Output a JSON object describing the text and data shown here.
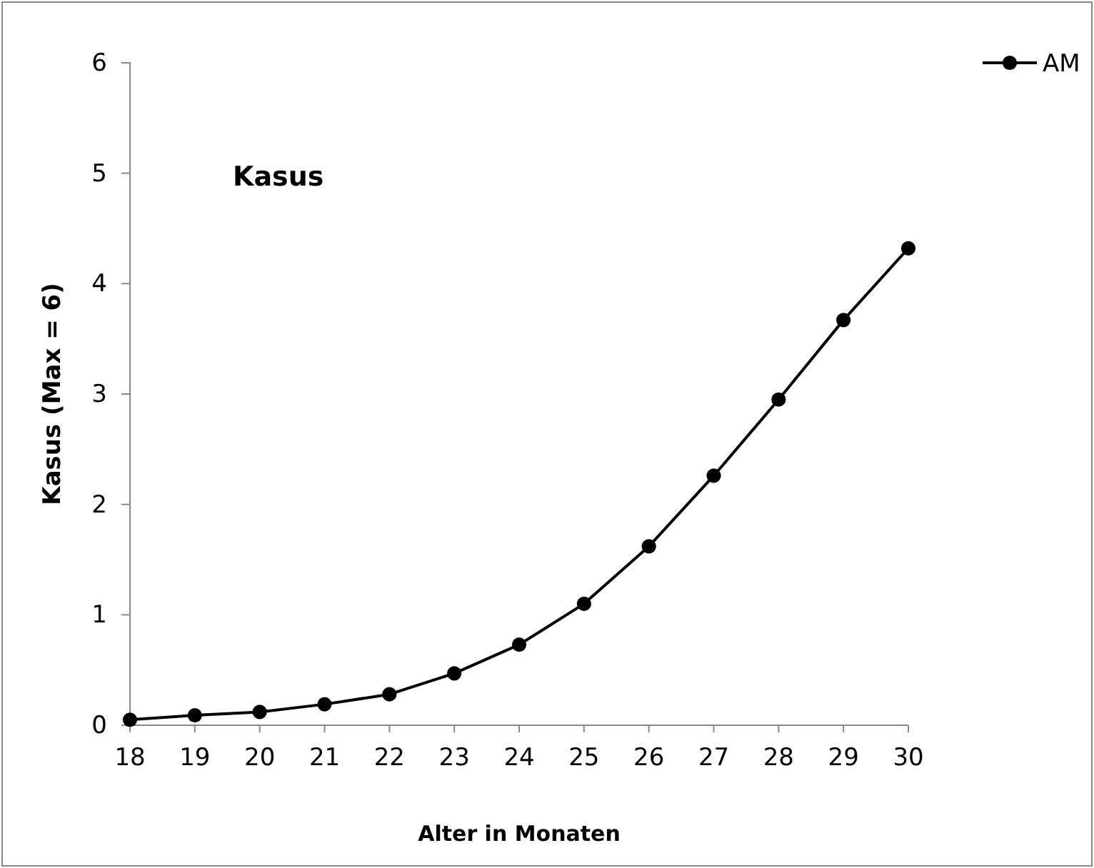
{
  "chart_data": {
    "type": "line",
    "title": "Kasus",
    "xlabel": "Alter in Monaten",
    "ylabel": "Kasus (Max = 6)",
    "x": [
      18,
      19,
      20,
      21,
      22,
      23,
      24,
      25,
      26,
      27,
      28,
      29,
      30
    ],
    "series": [
      {
        "name": "AM",
        "color": "#000000",
        "values": [
          0.05,
          0.09,
          0.12,
          0.19,
          0.28,
          0.47,
          0.73,
          1.1,
          1.62,
          2.26,
          2.95,
          3.67,
          4.32
        ]
      }
    ],
    "xlim": [
      18,
      30
    ],
    "xticks": [
      18,
      19,
      20,
      21,
      22,
      23,
      24,
      25,
      26,
      27,
      28,
      29,
      30
    ],
    "ylim": [
      0,
      6
    ],
    "yticks": [
      0,
      1,
      2,
      3,
      4,
      5,
      6
    ],
    "grid": false,
    "legend": "top right",
    "marker": "circle",
    "line_style": "solid"
  }
}
